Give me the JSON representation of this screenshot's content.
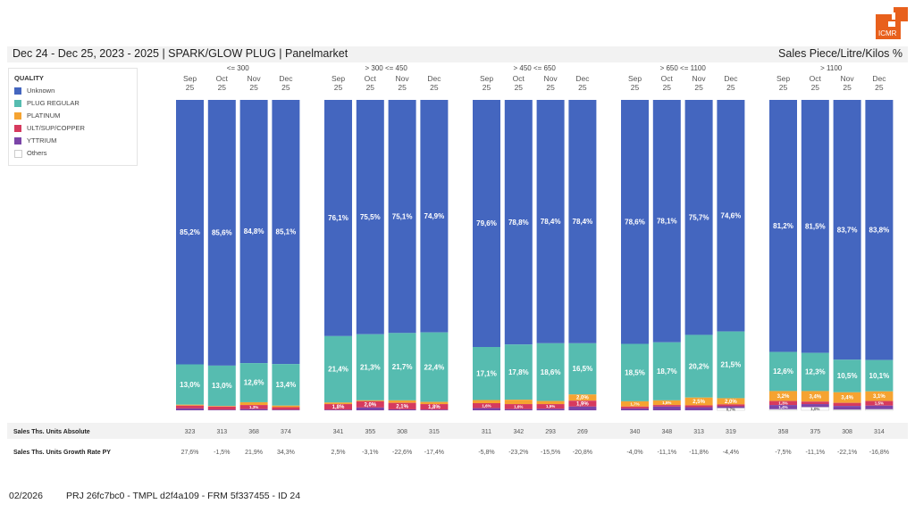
{
  "header": {
    "title": "Dec 24 - Dec 25, 2023 - 2025 | SPARK/GLOW PLUG | Panelmarket",
    "unit": "Sales Piece/Litre/Kilos %"
  },
  "logo": {
    "text": "ICMR",
    "color": "#e8601c"
  },
  "footer": {
    "date": "02/2026",
    "ids": "PRJ 26fc7bc0 - TMPL d2f4a109 - FRM 5f337455 - ID 24"
  },
  "legend": {
    "title": "QUALITY",
    "items": [
      {
        "label": "Unknown",
        "color": "#4466bf"
      },
      {
        "label": "PLUG REGULAR",
        "color": "#56bcb0"
      },
      {
        "label": "PLATINUM",
        "color": "#f5a331"
      },
      {
        "label": "ULT/SUP/COPPER",
        "color": "#d63a5e"
      },
      {
        "label": "YTTRIUM",
        "color": "#7b45a8"
      },
      {
        "label": "Others",
        "color": "#ffffff"
      }
    ]
  },
  "chart_data": {
    "type": "bar",
    "stacked": true,
    "normalized": true,
    "title": "Dec 24 - Dec 25, 2023 - 2025 | SPARK/GLOW PLUG | Panelmarket",
    "ylabel": "Sales Piece/Litre/Kilos %",
    "ylim": [
      0,
      100
    ],
    "legend_position": "left",
    "series_names": [
      "Unknown",
      "PLUG REGULAR",
      "PLATINUM",
      "ULT/SUP/COPPER",
      "YTTRIUM",
      "Others"
    ],
    "groups": [
      {
        "label": "<= 300",
        "bars": [
          {
            "month": "Sep",
            "year": "25",
            "values": [
              85.2,
              13.0,
              0.3,
              0.9,
              0.6,
              0.0
            ],
            "labels": [
              "85,2%",
              "13,0%",
              "",
              "",
              "",
              ""
            ]
          },
          {
            "month": "Oct",
            "year": "25",
            "values": [
              85.6,
              13.0,
              0.2,
              1.0,
              0.2,
              0.0
            ],
            "labels": [
              "85,6%",
              "13,0%",
              "",
              "",
              "",
              ""
            ]
          },
          {
            "month": "Nov",
            "year": "25",
            "values": [
              84.8,
              12.6,
              0.9,
              1.3,
              0.4,
              0.0
            ],
            "labels": [
              "84,8%",
              "12,6%",
              "",
              "1,3%",
              "",
              ""
            ]
          },
          {
            "month": "Dec",
            "year": "25",
            "values": [
              85.1,
              13.4,
              0.5,
              0.8,
              0.2,
              0.0
            ],
            "labels": [
              "85,1%",
              "13,4%",
              "",
              "",
              "",
              ""
            ]
          }
        ]
      },
      {
        "label": "> 300 <= 450",
        "bars": [
          {
            "month": "Sep",
            "year": "25",
            "values": [
              76.1,
              21.4,
              0.5,
              1.8,
              0.2,
              0.0
            ],
            "labels": [
              "76,1%",
              "21,4%",
              "",
              "1,8%",
              "",
              ""
            ]
          },
          {
            "month": "Oct",
            "year": "25",
            "values": [
              75.5,
              21.3,
              0.3,
              2.0,
              0.9,
              0.0
            ],
            "labels": [
              "75,5%",
              "21,3%",
              "",
              "2,0%",
              "",
              ""
            ]
          },
          {
            "month": "Nov",
            "year": "25",
            "values": [
              75.1,
              21.7,
              0.8,
              2.1,
              0.3,
              0.0
            ],
            "labels": [
              "75,1%",
              "21,7%",
              "",
              "2,1%",
              "",
              ""
            ]
          },
          {
            "month": "Dec",
            "year": "25",
            "values": [
              74.9,
              22.4,
              0.7,
              1.8,
              0.2,
              0.0
            ],
            "labels": [
              "74,9%",
              "22,4%",
              "",
              "1,8%",
              "",
              ""
            ]
          }
        ]
      },
      {
        "label": "> 450 <= 650",
        "bars": [
          {
            "month": "Sep",
            "year": "25",
            "values": [
              79.6,
              17.1,
              1.0,
              1.6,
              0.7,
              0.0
            ],
            "labels": [
              "79,6%",
              "17,1%",
              "",
              "1,6%",
              "",
              ""
            ]
          },
          {
            "month": "Oct",
            "year": "25",
            "values": [
              78.8,
              17.8,
              1.4,
              1.6,
              0.4,
              0.0
            ],
            "labels": [
              "78,8%",
              "17,8%",
              "",
              "1,6%",
              "",
              ""
            ]
          },
          {
            "month": "Nov",
            "year": "25",
            "values": [
              78.4,
              18.6,
              1.0,
              1.5,
              0.5,
              0.0
            ],
            "labels": [
              "78,4%",
              "18,6%",
              "",
              "1,5%",
              "",
              ""
            ]
          },
          {
            "month": "Dec",
            "year": "25",
            "values": [
              78.4,
              16.5,
              2.0,
              1.9,
              1.2,
              0.0
            ],
            "labels": [
              "78,4%",
              "16,5%",
              "2,0%",
              "1,9%",
              "",
              ""
            ]
          }
        ]
      },
      {
        "label": "> 650 <= 1100",
        "bars": [
          {
            "month": "Sep",
            "year": "25",
            "values": [
              78.6,
              18.5,
              1.7,
              0.6,
              0.6,
              0.0
            ],
            "labels": [
              "78,6%",
              "18,5%",
              "1,7%",
              "",
              "",
              ""
            ]
          },
          {
            "month": "Oct",
            "year": "25",
            "values": [
              78.1,
              18.7,
              1.5,
              0.5,
              1.2,
              0.0
            ],
            "labels": [
              "78,1%",
              "18,7%",
              "1,5%",
              "",
              "",
              ""
            ]
          },
          {
            "month": "Nov",
            "year": "25",
            "values": [
              75.7,
              20.2,
              2.5,
              0.6,
              1.0,
              0.0
            ],
            "labels": [
              "75,7%",
              "20,2%",
              "2,5%",
              "",
              "",
              ""
            ]
          },
          {
            "month": "Dec",
            "year": "25",
            "values": [
              74.6,
              21.5,
              2.0,
              0.6,
              0.6,
              0.7
            ],
            "labels": [
              "74,6%",
              "21,5%",
              "2,0%",
              "",
              "",
              "0,7%"
            ]
          }
        ]
      },
      {
        "label": "> 1100",
        "bars": [
          {
            "month": "Sep",
            "year": "25",
            "values": [
              81.2,
              12.6,
              3.2,
              1.3,
              1.4,
              0.3
            ],
            "labels": [
              "81,2%",
              "12,6%",
              "3,2%",
              "1,3%",
              "1,4%",
              ""
            ]
          },
          {
            "month": "Oct",
            "year": "25",
            "values": [
              81.5,
              12.3,
              3.4,
              0.8,
              1.0,
              1.0
            ],
            "labels": [
              "81,5%",
              "12,3%",
              "3,4%",
              "",
              "",
              "1,0%"
            ]
          },
          {
            "month": "Nov",
            "year": "25",
            "values": [
              83.7,
              10.5,
              3.4,
              1.0,
              1.2,
              0.2
            ],
            "labels": [
              "83,7%",
              "10,5%",
              "3,4%",
              "",
              "",
              ""
            ]
          },
          {
            "month": "Dec",
            "year": "25",
            "values": [
              83.8,
              10.1,
              3.1,
              1.5,
              1.2,
              0.3
            ],
            "labels": [
              "83,8%",
              "10,1%",
              "3,1%",
              "1,5%",
              "",
              ""
            ]
          }
        ]
      }
    ]
  },
  "table": {
    "rows": [
      {
        "label": "Sales Ths. Units Absolute",
        "values": [
          "323",
          "313",
          "368",
          "374",
          "341",
          "355",
          "308",
          "315",
          "311",
          "342",
          "293",
          "269",
          "340",
          "348",
          "313",
          "319",
          "358",
          "375",
          "308",
          "314"
        ]
      },
      {
        "label": "Sales Ths. Units Growth Rate PY",
        "values": [
          "27,6%",
          "-1,5%",
          "21,9%",
          "34,3%",
          "2,5%",
          "-3,1%",
          "-22,6%",
          "-17,4%",
          "-5,8%",
          "-23,2%",
          "-15,5%",
          "-20,8%",
          "-4,0%",
          "-11,1%",
          "-11,8%",
          "-4,4%",
          "-7,5%",
          "-11,1%",
          "-22,1%",
          "-16,8%"
        ]
      }
    ]
  }
}
